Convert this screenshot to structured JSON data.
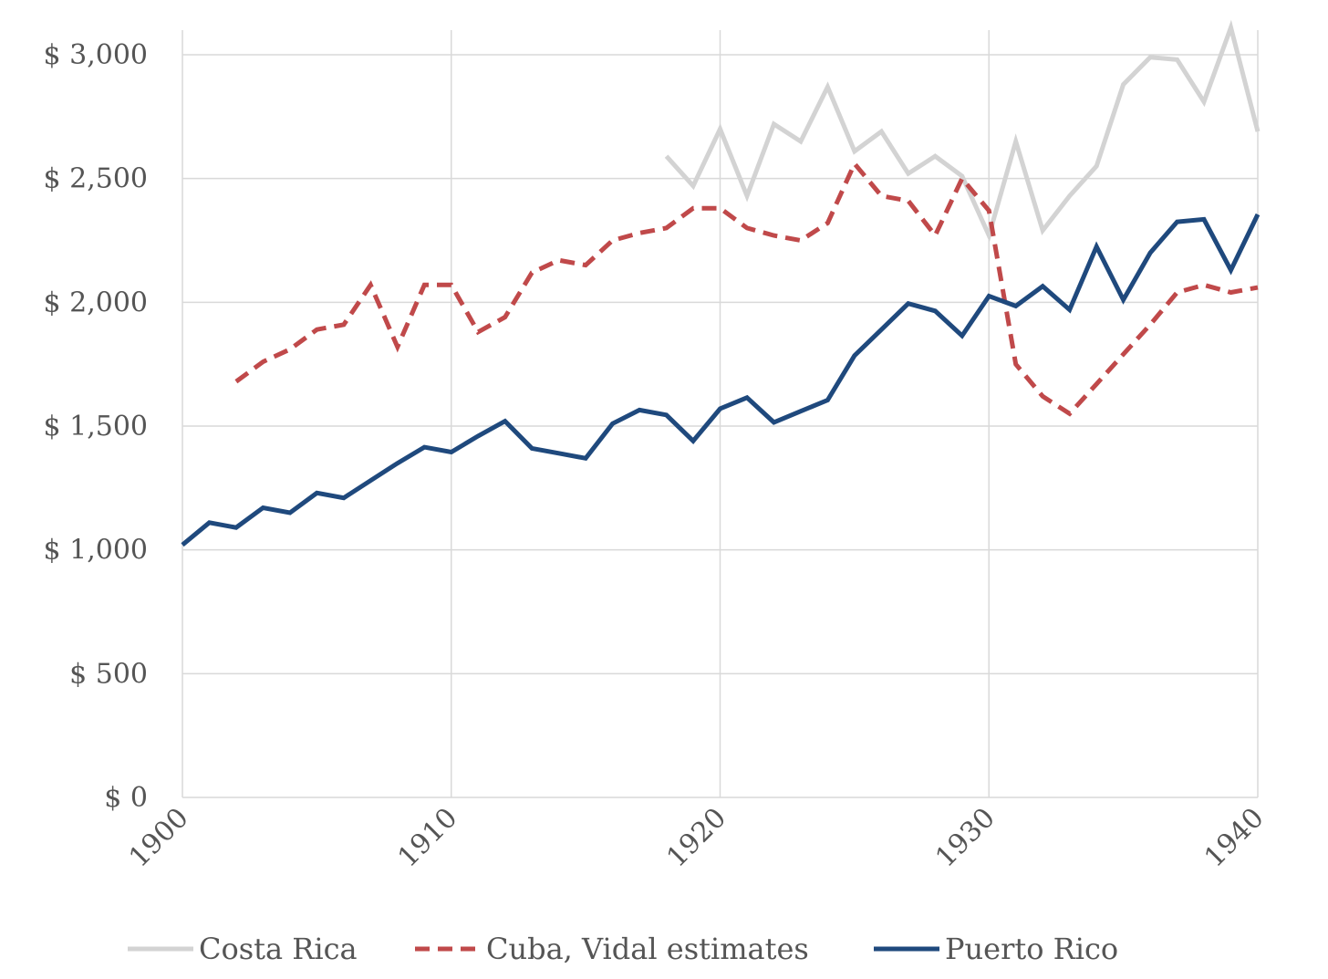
{
  "chart_data": {
    "type": "line",
    "title": "",
    "xlabel": "",
    "ylabel": "",
    "xlim": [
      1900,
      1940
    ],
    "ylim": [
      0,
      3100
    ],
    "x_ticks": [
      1900,
      1910,
      1920,
      1930,
      1940
    ],
    "x_tick_labels": [
      "1900",
      "1910",
      "1920",
      "1930",
      "1940"
    ],
    "y_ticks": [
      0,
      500,
      1000,
      1500,
      2000,
      2500,
      3000
    ],
    "y_tick_labels": [
      "$ 0",
      "$ 500",
      "$ 1,000",
      "$ 1,500",
      "$ 2,000",
      "$ 2,500",
      "$ 3,000"
    ],
    "grid": true,
    "legend_position": "bottom",
    "series": [
      {
        "name": "Costa Rica",
        "color": "#d3d3d3",
        "dash": "solid",
        "x": [
          1918,
          1919,
          1920,
          1921,
          1922,
          1923,
          1924,
          1925,
          1926,
          1927,
          1928,
          1929,
          1930,
          1931,
          1932,
          1933,
          1934,
          1935,
          1936,
          1937,
          1938,
          1939,
          1940
        ],
        "values": [
          2590,
          2470,
          2700,
          2430,
          2720,
          2650,
          2870,
          2610,
          2690,
          2520,
          2590,
          2510,
          2270,
          2650,
          2290,
          2430,
          2550,
          2880,
          2990,
          2980,
          2810,
          3110,
          2690
        ]
      },
      {
        "name": "Cuba, Vidal estimates",
        "color": "#c0494a",
        "dash": "dashed",
        "x": [
          1902,
          1903,
          1904,
          1905,
          1906,
          1907,
          1908,
          1909,
          1910,
          1911,
          1912,
          1913,
          1914,
          1915,
          1916,
          1917,
          1918,
          1919,
          1920,
          1921,
          1922,
          1923,
          1924,
          1925,
          1926,
          1927,
          1928,
          1929,
          1930,
          1931,
          1932,
          1933,
          1934,
          1935,
          1936,
          1937,
          1938,
          1939,
          1940
        ],
        "values": [
          1680,
          1760,
          1810,
          1890,
          1910,
          2070,
          1820,
          2070,
          2070,
          1880,
          1940,
          2120,
          2170,
          2150,
          2250,
          2280,
          2300,
          2380,
          2380,
          2300,
          2270,
          2250,
          2320,
          2560,
          2430,
          2410,
          2270,
          2500,
          2370,
          1750,
          1620,
          1550,
          1670,
          1790,
          1910,
          2040,
          2070,
          2040,
          2060
        ]
      },
      {
        "name": "Puerto Rico",
        "color": "#1f497d",
        "dash": "solid",
        "x": [
          1900,
          1901,
          1902,
          1903,
          1904,
          1905,
          1906,
          1907,
          1908,
          1909,
          1910,
          1911,
          1912,
          1913,
          1914,
          1915,
          1916,
          1917,
          1918,
          1919,
          1920,
          1921,
          1922,
          1923,
          1924,
          1925,
          1926,
          1927,
          1928,
          1929,
          1930,
          1931,
          1932,
          1933,
          1934,
          1935,
          1936,
          1937,
          1938,
          1939,
          1940
        ],
        "values": [
          1020,
          1110,
          1090,
          1170,
          1150,
          1230,
          1210,
          1280,
          1350,
          1415,
          1395,
          1460,
          1520,
          1410,
          1390,
          1370,
          1510,
          1565,
          1545,
          1440,
          1570,
          1615,
          1515,
          1560,
          1605,
          1785,
          1890,
          1995,
          1965,
          1865,
          2025,
          1985,
          2065,
          1970,
          2225,
          2010,
          2200,
          2325,
          2335,
          2130,
          2355
        ]
      }
    ]
  }
}
